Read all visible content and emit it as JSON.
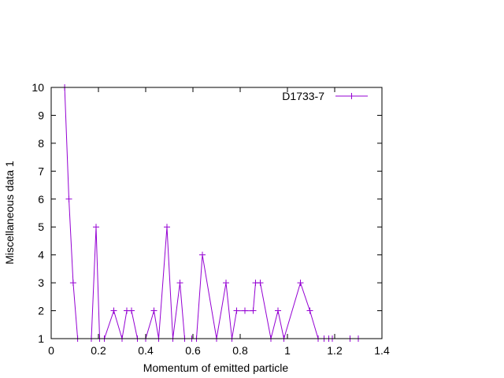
{
  "chart_data": {
    "type": "line",
    "title": "",
    "xlabel": "Momentum of emitted particle",
    "ylabel": "Miscellaneous data 1",
    "xlim": [
      0,
      1.4
    ],
    "ylim": [
      1,
      10
    ],
    "xticks": [
      0,
      0.2,
      0.4,
      0.6,
      0.8,
      1,
      1.2,
      1.4
    ],
    "xtick_labels": [
      "0",
      "0.2",
      "0.4",
      "0.6",
      "0.8",
      "1",
      "1.2",
      "1.4"
    ],
    "yticks": [
      1,
      2,
      3,
      4,
      5,
      6,
      7,
      8,
      9,
      10
    ],
    "ytick_labels": [
      "1",
      "2",
      "3",
      "4",
      "5",
      "6",
      "7",
      "8",
      "9",
      "10"
    ],
    "grid": false,
    "legend_position": "top-right",
    "series": [
      {
        "name": "D1733-7",
        "color": "#9400d3",
        "marker": "plus",
        "x": [
          0.057,
          0.075,
          0.093,
          0.112,
          0.17,
          0.19,
          0.205,
          0.225,
          0.265,
          0.3,
          0.32,
          0.34,
          0.365,
          0.4,
          0.435,
          0.455,
          0.49,
          0.515,
          0.545,
          0.565,
          0.595,
          0.615,
          0.64,
          0.7,
          0.74,
          0.765,
          0.785,
          0.82,
          0.855,
          0.865,
          0.885,
          0.93,
          0.96,
          0.985,
          1.055,
          1.095,
          1.13,
          1.155,
          1.175,
          1.19,
          1.265,
          1.3
        ],
        "y": [
          10,
          6,
          3,
          1,
          1,
          5,
          1,
          1,
          2,
          1,
          2,
          2,
          1,
          1,
          2,
          1,
          5,
          1,
          3,
          1,
          1,
          1,
          4,
          1,
          3,
          1,
          2,
          2,
          2,
          3,
          3,
          1,
          2,
          1,
          3,
          2,
          1,
          1,
          1,
          1,
          1,
          1
        ]
      }
    ]
  }
}
